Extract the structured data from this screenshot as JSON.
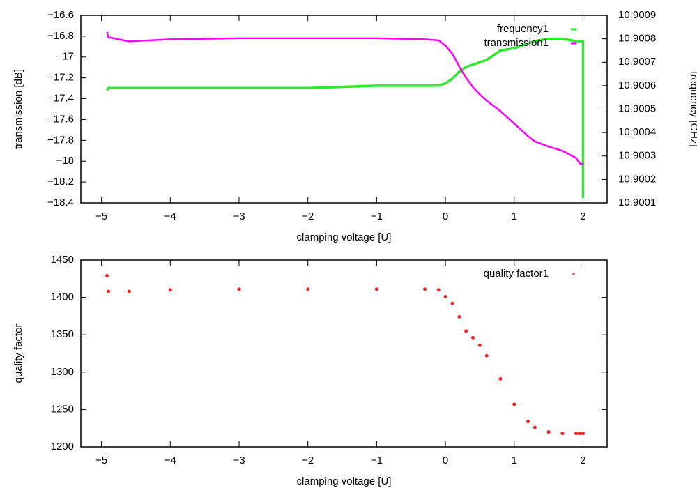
{
  "chart_data": [
    {
      "type": "line",
      "x_label": "clamping voltage [U]",
      "y_label": "transmission [dB]",
      "y2_label": "frequency [GHz]",
      "x": [
        -4.92,
        -4.9,
        -4.6,
        -4,
        -3,
        -2,
        -1,
        -0.3,
        -0.1,
        0,
        0.1,
        0.2,
        0.3,
        0.4,
        0.5,
        0.6,
        0.8,
        1,
        1.2,
        1.3,
        1.5,
        1.7,
        1.9,
        1.95,
        2,
        2
      ],
      "xlim": [
        -5.3,
        2.35
      ],
      "xticks": [
        {
          "value": -5,
          "label": "−5"
        },
        {
          "value": -4,
          "label": "−4"
        },
        {
          "value": -3,
          "label": "−3"
        },
        {
          "value": -2,
          "label": "−2"
        },
        {
          "value": -1,
          "label": "−1"
        },
        0,
        1,
        2
      ],
      "ylim": [
        -18.4,
        -16.6
      ],
      "yticks": [
        {
          "value": -16.6,
          "label": "−16.6"
        },
        {
          "value": -16.8,
          "label": "−16.8"
        },
        {
          "value": -17,
          "label": "−17"
        },
        {
          "value": -17.2,
          "label": "−17.2"
        },
        {
          "value": -17.4,
          "label": "−17.4"
        },
        {
          "value": -17.6,
          "label": "−17.6"
        },
        {
          "value": -17.8,
          "label": "−17.8"
        },
        {
          "value": -18,
          "label": "−18"
        },
        {
          "value": -18.2,
          "label": "−18.2"
        },
        {
          "value": -18.4,
          "label": "−18.4"
        }
      ],
      "y2lim": [
        10.9001,
        10.9009
      ],
      "y2ticks": [
        10.9001,
        10.9002,
        10.9003,
        10.9004,
        10.9005,
        10.9006,
        10.9007,
        10.9008,
        10.9009
      ],
      "legend": "upper right",
      "series": [
        {
          "name": "frequency1",
          "color": "#2ee82e",
          "axis": "y2",
          "values": [
            10.90058,
            10.90059,
            10.90059,
            10.90059,
            10.90059,
            10.90059,
            10.9006,
            10.9006,
            10.9006,
            10.90061,
            10.90063,
            10.90066,
            10.90068,
            10.90069,
            10.9007,
            10.90071,
            10.90075,
            10.90076,
            10.90078,
            10.90079,
            10.9008,
            10.9008,
            10.90079,
            10.90079,
            10.90079,
            10.90012
          ]
        },
        {
          "name": "transmission1",
          "color": "#ff00ff",
          "values": [
            -16.76,
            -16.81,
            -16.85,
            -16.83,
            -16.82,
            -16.82,
            -16.82,
            -16.83,
            -16.84,
            -16.89,
            -16.97,
            -17.09,
            -17.2,
            -17.29,
            -17.36,
            -17.42,
            -17.52,
            -17.64,
            -17.76,
            -17.81,
            -17.86,
            -17.9,
            -17.97,
            -18.02,
            -18.03,
            null
          ]
        }
      ]
    },
    {
      "type": "scatter",
      "x_label": "clamping voltage [U]",
      "y_label": "quality factor",
      "x": [
        -4.92,
        -4.9,
        -4.6,
        -4,
        -3,
        -2,
        -1,
        -0.3,
        -0.1,
        0,
        0.1,
        0.2,
        0.3,
        0.4,
        0.5,
        0.6,
        0.8,
        1,
        1.2,
        1.3,
        1.5,
        1.7,
        1.9,
        1.95,
        2
      ],
      "xlim": [
        -5.3,
        2.35
      ],
      "xticks": [
        {
          "value": -5,
          "label": "−5"
        },
        {
          "value": -4,
          "label": "−4"
        },
        {
          "value": -3,
          "label": "−3"
        },
        {
          "value": -2,
          "label": "−2"
        },
        {
          "value": -1,
          "label": "−1"
        },
        0,
        1,
        2
      ],
      "ylim": [
        1200,
        1450
      ],
      "yticks": [
        1200,
        1250,
        1300,
        1350,
        1400,
        1450
      ],
      "legend": "upper right",
      "series": [
        {
          "name": "quality factor1",
          "color": "#ff2020",
          "values": [
            1429,
            1408,
            1408,
            1410,
            1411,
            1411,
            1411,
            1411,
            1410,
            1401,
            1392,
            1374,
            1355,
            1346,
            1336,
            1322,
            1291,
            1257,
            1234,
            1226,
            1220,
            1218,
            1218,
            1218,
            1218
          ]
        }
      ]
    }
  ]
}
